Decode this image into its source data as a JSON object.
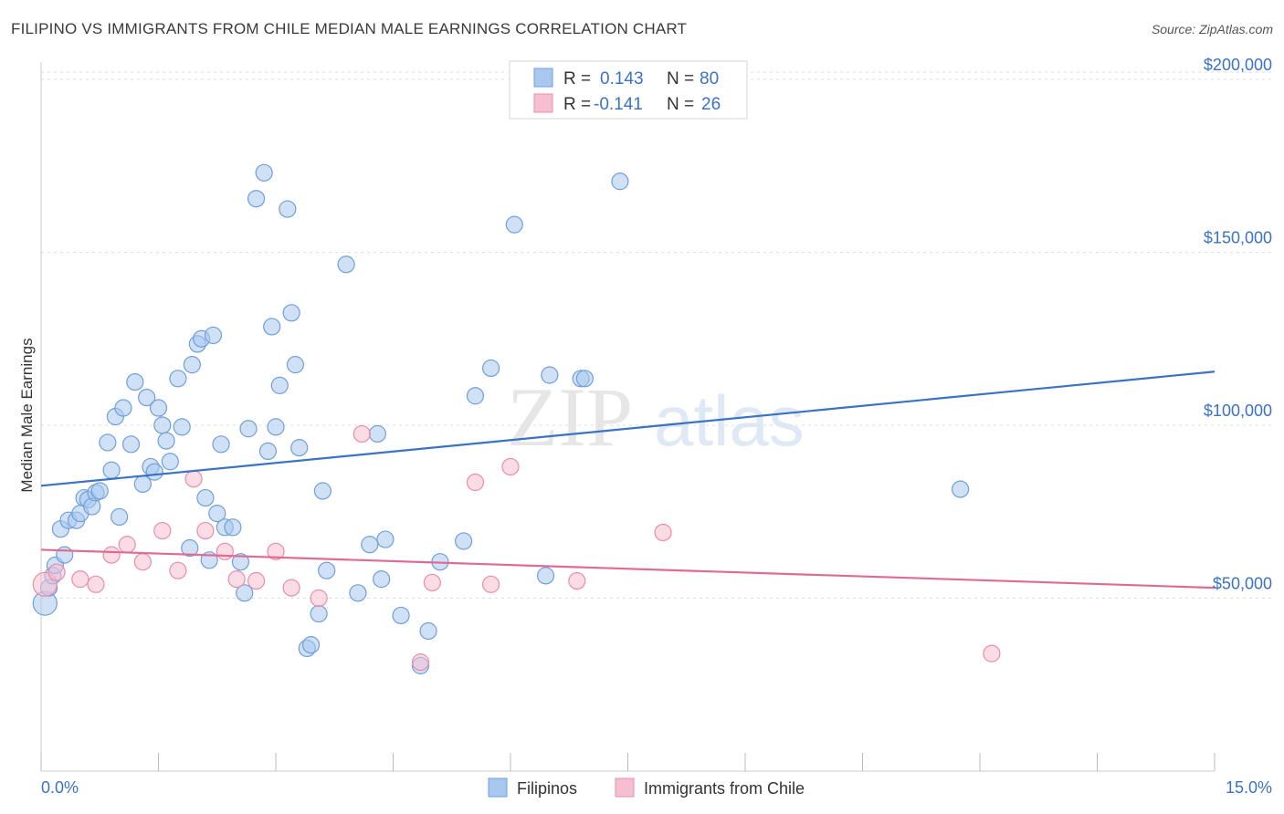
{
  "header": {
    "title": "FILIPINO VS IMMIGRANTS FROM CHILE MEDIAN MALE EARNINGS CORRELATION CHART",
    "source": "Source: ZipAtlas.com"
  },
  "watermark": {
    "part1": "ZIP",
    "part2": "atlas"
  },
  "colors": {
    "blue_fill": "#a9c8ef",
    "blue_stroke": "#6f9fd8",
    "blue_line": "#3a72c4",
    "pink_fill": "#f6bfd0",
    "pink_stroke": "#e98cab",
    "pink_line": "#e06a92",
    "grid": "#dddddd",
    "axis_label": "#3a72c4"
  },
  "legend": {
    "rows": [
      {
        "r_label": "R =",
        "r_value": "0.143",
        "n_label": "N =",
        "n_value": "80"
      },
      {
        "r_label": "R =",
        "r_value": "-0.141",
        "n_label": "N =",
        "n_value": "26"
      }
    ]
  },
  "chart_data": {
    "type": "scatter",
    "title": "FILIPINO VS IMMIGRANTS FROM CHILE MEDIAN MALE EARNINGS CORRELATION CHART",
    "xlabel": "",
    "ylabel": "Median Male Earnings",
    "xlim": [
      0,
      15
    ],
    "ylim": [
      0,
      205000
    ],
    "x_tick_labels": [
      "0.0%",
      "15.0%"
    ],
    "y_ticks": [
      {
        "value": 50000,
        "label": "$50,000"
      },
      {
        "value": 100000,
        "label": "$100,000"
      },
      {
        "value": 150000,
        "label": "$150,000"
      },
      {
        "value": 200000,
        "label": "$200,000"
      }
    ],
    "series": [
      {
        "name": "Filipinos",
        "r": 0.143,
        "n": 80,
        "trend": {
          "x0": 0,
          "y0": 82500,
          "x1": 15,
          "y1": 115500
        },
        "points": [
          [
            0.05,
            48500
          ],
          [
            0.1,
            53000
          ],
          [
            0.15,
            56500
          ],
          [
            0.18,
            59500
          ],
          [
            0.25,
            70000
          ],
          [
            0.3,
            62500
          ],
          [
            0.35,
            72500
          ],
          [
            0.45,
            72500
          ],
          [
            0.5,
            74500
          ],
          [
            0.55,
            79000
          ],
          [
            0.6,
            78500
          ],
          [
            0.65,
            76500
          ],
          [
            0.7,
            80500
          ],
          [
            0.75,
            81000
          ],
          [
            0.85,
            95000
          ],
          [
            0.9,
            87000
          ],
          [
            0.95,
            102500
          ],
          [
            1.0,
            73500
          ],
          [
            1.05,
            105000
          ],
          [
            1.15,
            94500
          ],
          [
            1.2,
            112500
          ],
          [
            1.3,
            83000
          ],
          [
            1.35,
            108000
          ],
          [
            1.4,
            88000
          ],
          [
            1.45,
            86500
          ],
          [
            1.5,
            105000
          ],
          [
            1.55,
            100000
          ],
          [
            1.6,
            95500
          ],
          [
            1.65,
            89500
          ],
          [
            1.75,
            113500
          ],
          [
            1.8,
            99500
          ],
          [
            1.9,
            64500
          ],
          [
            1.93,
            117500
          ],
          [
            2.0,
            123500
          ],
          [
            2.05,
            125000
          ],
          [
            2.1,
            79000
          ],
          [
            2.15,
            61000
          ],
          [
            2.2,
            126000
          ],
          [
            2.25,
            74500
          ],
          [
            2.3,
            94500
          ],
          [
            2.35,
            70500
          ],
          [
            2.45,
            70500
          ],
          [
            2.55,
            60500
          ],
          [
            2.6,
            51500
          ],
          [
            2.65,
            99000
          ],
          [
            2.75,
            165500
          ],
          [
            2.85,
            173000
          ],
          [
            2.9,
            92500
          ],
          [
            2.95,
            128500
          ],
          [
            3.0,
            99500
          ],
          [
            3.05,
            111500
          ],
          [
            3.15,
            162500
          ],
          [
            3.2,
            132500
          ],
          [
            3.25,
            117500
          ],
          [
            3.3,
            93500
          ],
          [
            3.4,
            35500
          ],
          [
            3.45,
            36500
          ],
          [
            3.55,
            45500
          ],
          [
            3.6,
            81000
          ],
          [
            3.65,
            58000
          ],
          [
            3.9,
            146500
          ],
          [
            4.05,
            51500
          ],
          [
            4.2,
            65500
          ],
          [
            4.3,
            97500
          ],
          [
            4.35,
            55500
          ],
          [
            4.4,
            67000
          ],
          [
            4.6,
            45000
          ],
          [
            4.85,
            30500
          ],
          [
            4.95,
            40500
          ],
          [
            5.1,
            60500
          ],
          [
            5.4,
            66500
          ],
          [
            5.55,
            108500
          ],
          [
            5.75,
            116500
          ],
          [
            6.05,
            158000
          ],
          [
            6.45,
            56500
          ],
          [
            6.5,
            114500
          ],
          [
            6.9,
            113500
          ],
          [
            6.95,
            113500
          ],
          [
            7.4,
            170500
          ],
          [
            11.75,
            81500
          ]
        ]
      },
      {
        "name": "Immigrants from Chile",
        "r": -0.141,
        "n": 26,
        "trend": {
          "x0": 0,
          "y0": 64000,
          "x1": 15,
          "y1": 53000
        },
        "points": [
          [
            0.05,
            54000
          ],
          [
            0.2,
            57500
          ],
          [
            0.5,
            55500
          ],
          [
            0.7,
            54000
          ],
          [
            0.9,
            62500
          ],
          [
            1.1,
            65500
          ],
          [
            1.3,
            60500
          ],
          [
            1.55,
            69500
          ],
          [
            1.75,
            58000
          ],
          [
            1.95,
            84500
          ],
          [
            2.1,
            69500
          ],
          [
            2.35,
            63500
          ],
          [
            2.5,
            55500
          ],
          [
            2.75,
            55000
          ],
          [
            3.0,
            63500
          ],
          [
            3.2,
            53000
          ],
          [
            3.55,
            50000
          ],
          [
            4.1,
            97500
          ],
          [
            4.85,
            31500
          ],
          [
            5.0,
            54500
          ],
          [
            5.55,
            83500
          ],
          [
            5.75,
            54000
          ],
          [
            6.0,
            88000
          ],
          [
            6.85,
            55000
          ],
          [
            7.95,
            69000
          ],
          [
            12.15,
            34000
          ]
        ]
      }
    ]
  }
}
